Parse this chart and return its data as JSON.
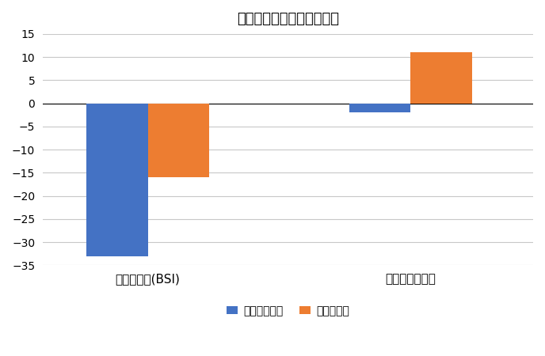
{
  "title": "景況見通しとその不確実性",
  "groups": [
    "景況見通し(BSI)",
    "主観的不確実性"
  ],
  "series": [
    {
      "label": "世界経済危機",
      "color": "#4472C4",
      "values": [
        -33,
        -2
      ]
    },
    {
      "label": "コロナ危機",
      "color": "#ED7D31",
      "values": [
        -16,
        11
      ]
    }
  ],
  "ylim": [
    -35,
    15
  ],
  "yticks": [
    -35,
    -30,
    -25,
    -20,
    -15,
    -10,
    -5,
    0,
    5,
    10,
    15
  ],
  "bar_width": 0.35,
  "background_color": "#FFFFFF",
  "grid_color": "#C8C8C8",
  "title_fontsize": 13,
  "tick_fontsize": 10,
  "label_fontsize": 11,
  "legend_fontsize": 10
}
